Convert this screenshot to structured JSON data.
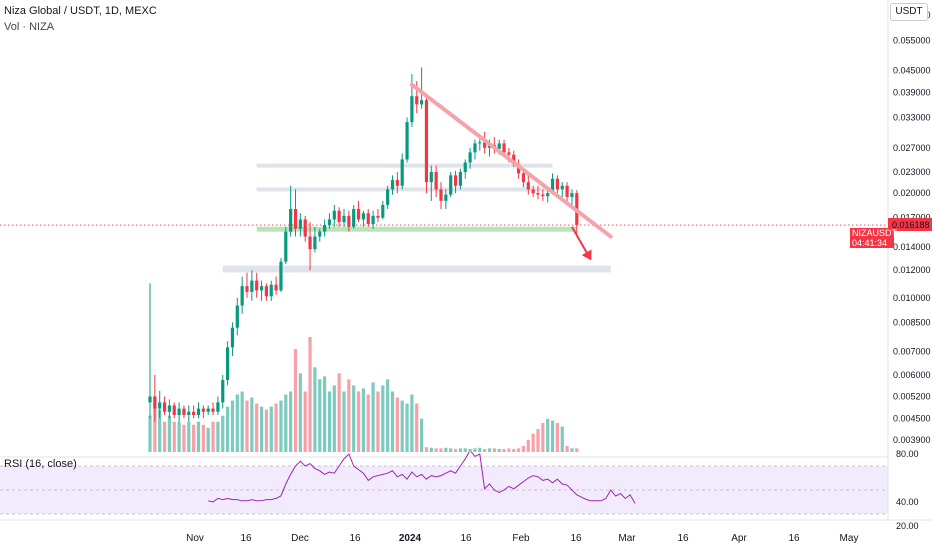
{
  "header": {
    "title": "Niza Global / USDT, 1D, MEXC",
    "volume_label": "Vol · NIZA"
  },
  "currency": "USDT",
  "rsi": {
    "label": "RSI (16, close)",
    "ticks": [
      "80.00",
      "40.00",
      "20.00"
    ],
    "band_color": "#e8d8fb",
    "line_color": "#9c27b0"
  },
  "last_price": {
    "symbol_label": "NIZAUSDT",
    "price": "0.016188",
    "countdown": "04:41:34",
    "color": "#f23645"
  },
  "colors": {
    "up": "#089981",
    "down": "#f23645",
    "up_volume": "#7ccbbf",
    "down_volume": "#f7a0a7",
    "trendline": "#f5a3aa",
    "support_zone": "#b7e4b9",
    "resistance_zone": "#e0e3eb"
  },
  "chart_data": {
    "type": "candlestick",
    "price_axis_ticks": [
      "0.065000",
      "0.055000",
      "0.045000",
      "0.039000",
      "0.033000",
      "0.027000",
      "0.023000",
      "0.020000",
      "0.017000",
      "0.014000",
      "0.012000",
      "0.010000",
      "0.008500",
      "0.007000",
      "0.006000",
      "0.005200",
      "0.004500",
      "0.003900"
    ],
    "time_axis_ticks": [
      "Nov",
      "16",
      "Dec",
      "16",
      "2024",
      "16",
      "Feb",
      "16",
      "Mar",
      "16",
      "Apr",
      "16",
      "May"
    ],
    "ohlc": [
      [
        0.005,
        0.011,
        0.0045,
        0.0052
      ],
      [
        0.0052,
        0.006,
        0.0044,
        0.0048
      ],
      [
        0.0048,
        0.0054,
        0.0045,
        0.005
      ],
      [
        0.005,
        0.0052,
        0.0046,
        0.0047
      ],
      [
        0.0047,
        0.0051,
        0.0045,
        0.0049
      ],
      [
        0.0049,
        0.005,
        0.0045,
        0.0046
      ],
      [
        0.0046,
        0.005,
        0.0044,
        0.0048
      ],
      [
        0.0048,
        0.0049,
        0.0045,
        0.0046
      ],
      [
        0.0046,
        0.0049,
        0.0044,
        0.0047
      ],
      [
        0.0047,
        0.0049,
        0.0045,
        0.0046
      ],
      [
        0.0046,
        0.005,
        0.0045,
        0.0048
      ],
      [
        0.0048,
        0.0049,
        0.0045,
        0.0047
      ],
      [
        0.0047,
        0.0049,
        0.0046,
        0.0048
      ],
      [
        0.0048,
        0.005,
        0.0046,
        0.0047
      ],
      [
        0.0047,
        0.0052,
        0.0046,
        0.005
      ],
      [
        0.005,
        0.006,
        0.0048,
        0.0058
      ],
      [
        0.0058,
        0.0075,
        0.0056,
        0.0072
      ],
      [
        0.0072,
        0.0085,
        0.0068,
        0.0082
      ],
      [
        0.0082,
        0.01,
        0.0078,
        0.0095
      ],
      [
        0.0095,
        0.0115,
        0.009,
        0.0108
      ],
      [
        0.0108,
        0.0118,
        0.01,
        0.0104
      ],
      [
        0.0104,
        0.012,
        0.0098,
        0.0112
      ],
      [
        0.0112,
        0.0118,
        0.01,
        0.0105
      ],
      [
        0.0105,
        0.0112,
        0.0098,
        0.0108
      ],
      [
        0.0108,
        0.011,
        0.0098,
        0.0101
      ],
      [
        0.0101,
        0.0112,
        0.0098,
        0.0109
      ],
      [
        0.0109,
        0.0115,
        0.0102,
        0.0105
      ],
      [
        0.0105,
        0.013,
        0.0104,
        0.0127
      ],
      [
        0.0127,
        0.016,
        0.0125,
        0.0155
      ],
      [
        0.0155,
        0.021,
        0.015,
        0.018
      ],
      [
        0.018,
        0.0205,
        0.015,
        0.0158
      ],
      [
        0.0158,
        0.0175,
        0.015,
        0.0168
      ],
      [
        0.0168,
        0.0172,
        0.0145,
        0.015
      ],
      [
        0.015,
        0.0165,
        0.012,
        0.0138
      ],
      [
        0.0138,
        0.016,
        0.0135,
        0.015
      ],
      [
        0.015,
        0.0158,
        0.0145,
        0.0155
      ],
      [
        0.0155,
        0.0168,
        0.015,
        0.0162
      ],
      [
        0.0162,
        0.0175,
        0.0158,
        0.0168
      ],
      [
        0.0168,
        0.0185,
        0.016,
        0.0178
      ],
      [
        0.0178,
        0.0182,
        0.016,
        0.0165
      ],
      [
        0.0165,
        0.018,
        0.016,
        0.0172
      ],
      [
        0.0172,
        0.0178,
        0.0155,
        0.016
      ],
      [
        0.016,
        0.0185,
        0.0158,
        0.018
      ],
      [
        0.018,
        0.019,
        0.0165,
        0.0168
      ],
      [
        0.0168,
        0.0178,
        0.016,
        0.0175
      ],
      [
        0.0175,
        0.018,
        0.016,
        0.0163
      ],
      [
        0.0163,
        0.0178,
        0.0158,
        0.0172
      ],
      [
        0.0172,
        0.018,
        0.0165,
        0.017
      ],
      [
        0.017,
        0.019,
        0.0168,
        0.0185
      ],
      [
        0.0185,
        0.021,
        0.018,
        0.0205
      ],
      [
        0.0205,
        0.0225,
        0.0198,
        0.0218
      ],
      [
        0.0218,
        0.023,
        0.02,
        0.021
      ],
      [
        0.021,
        0.026,
        0.0205,
        0.025
      ],
      [
        0.025,
        0.033,
        0.0245,
        0.032
      ],
      [
        0.032,
        0.044,
        0.031,
        0.038
      ],
      [
        0.038,
        0.042,
        0.034,
        0.036
      ],
      [
        0.036,
        0.046,
        0.035,
        0.037
      ],
      [
        0.037,
        0.038,
        0.02,
        0.0215
      ],
      [
        0.0215,
        0.024,
        0.019,
        0.023
      ],
      [
        0.023,
        0.024,
        0.0195,
        0.0205
      ],
      [
        0.0205,
        0.0215,
        0.018,
        0.019
      ],
      [
        0.019,
        0.0205,
        0.018,
        0.0198
      ],
      [
        0.0198,
        0.023,
        0.0195,
        0.0225
      ],
      [
        0.0225,
        0.0232,
        0.02,
        0.021
      ],
      [
        0.021,
        0.0235,
        0.0205,
        0.023
      ],
      [
        0.023,
        0.025,
        0.022,
        0.0245
      ],
      [
        0.0245,
        0.027,
        0.0235,
        0.0262
      ],
      [
        0.0262,
        0.0285,
        0.025,
        0.0278
      ],
      [
        0.0278,
        0.0295,
        0.0265,
        0.028
      ],
      [
        0.028,
        0.03,
        0.026,
        0.027
      ],
      [
        0.027,
        0.0285,
        0.0255,
        0.0275
      ],
      [
        0.0275,
        0.029,
        0.026,
        0.0268
      ],
      [
        0.0268,
        0.0285,
        0.0258,
        0.0278
      ],
      [
        0.0278,
        0.0285,
        0.0255,
        0.0262
      ],
      [
        0.0262,
        0.027,
        0.0245,
        0.0258
      ],
      [
        0.0258,
        0.0265,
        0.0238,
        0.0242
      ],
      [
        0.0242,
        0.025,
        0.022,
        0.0228
      ],
      [
        0.0228,
        0.0235,
        0.0208,
        0.0215
      ],
      [
        0.0215,
        0.0225,
        0.0198,
        0.0205
      ],
      [
        0.0205,
        0.021,
        0.0195,
        0.02
      ],
      [
        0.02,
        0.021,
        0.0192,
        0.0198
      ],
      [
        0.0198,
        0.0205,
        0.019,
        0.0196
      ],
      [
        0.0196,
        0.0205,
        0.0188,
        0.02
      ],
      [
        0.02,
        0.0228,
        0.0198,
        0.022
      ],
      [
        0.022,
        0.0225,
        0.02,
        0.0205
      ],
      [
        0.0205,
        0.0215,
        0.0195,
        0.021
      ],
      [
        0.021,
        0.0215,
        0.019,
        0.0195
      ],
      [
        0.0195,
        0.0205,
        0.0185,
        0.02
      ],
      [
        0.02,
        0.0204,
        0.015,
        0.0162
      ]
    ],
    "volume": [
      0.6,
      0.8,
      0.7,
      0.5,
      0.6,
      0.5,
      0.5,
      0.45,
      0.5,
      0.45,
      0.5,
      0.45,
      0.4,
      0.5,
      0.5,
      0.6,
      0.75,
      0.85,
      0.95,
      1.0,
      0.85,
      0.9,
      0.8,
      0.75,
      0.7,
      0.75,
      0.8,
      0.85,
      0.95,
      1.0,
      1.7,
      1.3,
      1.0,
      1.9,
      1.4,
      1.2,
      1.25,
      1.0,
      1.1,
      1.3,
      1.0,
      1.2,
      1.1,
      1.0,
      1.05,
      0.95,
      1.15,
      1.0,
      1.1,
      1.2,
      1.0,
      0.9,
      0.85,
      0.8,
      0.95,
      0.8,
      0.55,
      0.08,
      0.07,
      0.06,
      0.06,
      0.07,
      0.06,
      0.05,
      0.06,
      0.06,
      0.05,
      0.06,
      0.07,
      0.05,
      0.06,
      0.06,
      0.05,
      0.05,
      0.06,
      0.05,
      0.06,
      0.1,
      0.2,
      0.3,
      0.38,
      0.48,
      0.55,
      0.52,
      0.48,
      0.42,
      0.1,
      0.06,
      0.06
    ],
    "rsi": [
      41,
      40,
      43,
      42,
      43,
      42,
      42,
      41,
      41,
      42,
      41,
      41,
      42,
      42,
      43,
      45,
      55,
      63,
      70,
      74,
      70,
      72,
      68,
      66,
      63,
      65,
      64,
      70,
      76,
      80,
      70,
      67,
      64,
      58,
      61,
      62,
      63,
      64,
      66,
      61,
      63,
      59,
      65,
      61,
      63,
      59,
      62,
      61,
      62,
      64,
      66,
      64,
      70,
      76,
      83,
      78,
      80,
      51,
      55,
      50,
      48,
      50,
      53,
      51,
      54,
      57,
      60,
      62,
      61,
      58,
      59,
      56,
      59,
      55,
      54,
      50,
      46,
      44,
      42,
      41,
      41,
      41,
      43,
      50,
      45,
      47,
      43,
      46,
      39
    ],
    "ylim_log": [
      0.0036,
      0.07
    ],
    "rsi_ylim": [
      20,
      80
    ],
    "rsi_band": [
      30,
      70
    ],
    "annotations": {
      "trendline": {
        "from": [
          54,
          0.041
        ],
        "to": [
          95,
          0.015
        ]
      },
      "support_zone": {
        "from_bar": 22,
        "to_bar": 88,
        "price": 0.01575
      },
      "resistance_zone_1": {
        "from_bar": 22,
        "to_bar": 83,
        "price": 0.024
      },
      "resistance_zone_2": {
        "from_bar": 22,
        "to_bar": 83,
        "price": 0.0205
      },
      "lower_zone": {
        "from_bar": 15,
        "to_bar": 95,
        "price": 0.0121
      },
      "arrow": {
        "from": [
          87,
          0.016
        ],
        "to": [
          91,
          0.0128
        ]
      }
    }
  }
}
